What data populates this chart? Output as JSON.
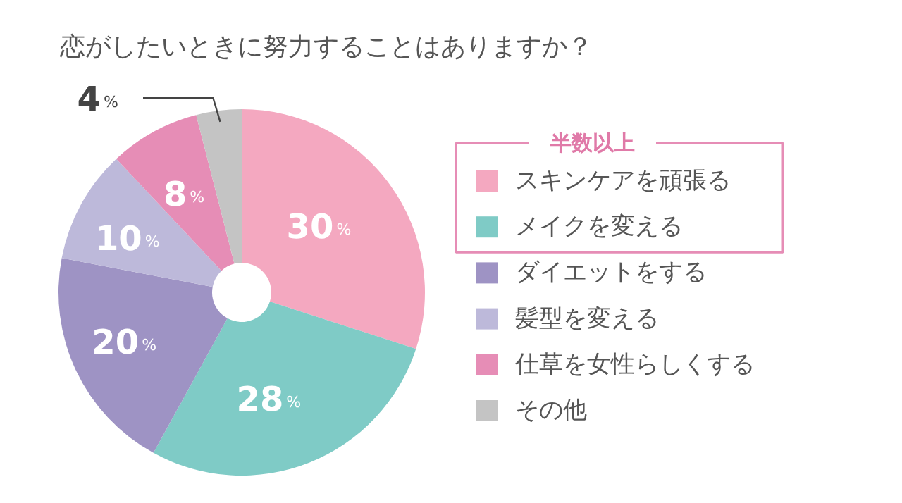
{
  "chart_data": {
    "type": "donut",
    "title": "恋がしたいときに努力することはありますか？",
    "categories": [
      "スキンケアを頑張る",
      "メイクを変える",
      "ダイエットをする",
      "髪型を変える",
      "仕草を女性らしくする",
      "その他"
    ],
    "values": [
      30,
      28,
      20,
      10,
      8,
      4
    ],
    "value_labels": [
      "30%",
      "28%",
      "20%",
      "10%",
      "8%",
      "4%"
    ],
    "colors": [
      "#f4a8c0",
      "#7fcbc6",
      "#9e93c4",
      "#bdb9da",
      "#e68db6",
      "#c4c4c4"
    ],
    "annotations": [
      "半数以上"
    ],
    "legend": "right"
  }
}
